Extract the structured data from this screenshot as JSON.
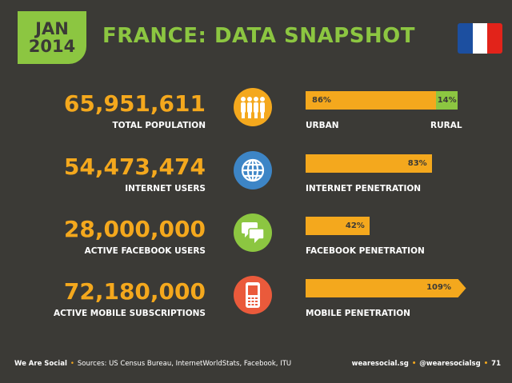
{
  "header": {
    "month": "JAN",
    "year": "2014",
    "title": "FRANCE: DATA SNAPSHOT",
    "flag_colors": [
      "#1c4fa0",
      "#ffffff",
      "#e2231a"
    ]
  },
  "colors": {
    "background": "#3b3a36",
    "accent_green": "#8cc641",
    "accent_orange": "#f4a81d",
    "icon_blue": "#3d85c6",
    "icon_red": "#ea5a3b"
  },
  "rows": [
    {
      "value": "65,951,611",
      "label": "TOTAL POPULATION",
      "icon": "people-icon",
      "bar_percent": 86,
      "bar_text": "86%",
      "secondary_percent": 14,
      "secondary_text": "14%",
      "bar_label": "URBAN",
      "bar_label_right": "RURAL"
    },
    {
      "value": "54,473,474",
      "label": "INTERNET USERS",
      "icon": "globe-icon",
      "bar_percent": 83,
      "bar_text": "83%",
      "bar_label": "INTERNET PENETRATION"
    },
    {
      "value": "28,000,000",
      "label": "ACTIVE FACEBOOK USERS",
      "icon": "chat-bubbles-icon",
      "bar_percent": 42,
      "bar_text": "42%",
      "bar_label": "FACEBOOK PENETRATION"
    },
    {
      "value": "72,180,000",
      "label": "ACTIVE MOBILE SUBSCRIPTIONS",
      "icon": "mobile-phone-icon",
      "bar_percent": 109,
      "bar_text": "109%",
      "bar_label": "MOBILE PENETRATION"
    }
  ],
  "footer": {
    "brand": "We Are Social",
    "sources": "Sources: US Census Bureau, InternetWorldStats, Facebook, ITU",
    "website": "wearesocial.sg",
    "handle": "@wearesocialsg",
    "page": "71"
  }
}
